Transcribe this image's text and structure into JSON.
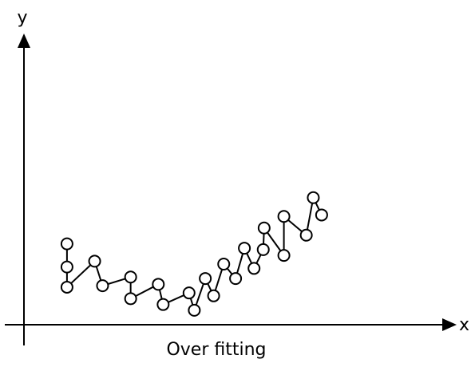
{
  "caption": "Over fitting",
  "axes": {
    "x_label": "x",
    "y_label": "y"
  },
  "colors": {
    "stroke": "#000000",
    "background": "#ffffff"
  },
  "chart_data": {
    "type": "line",
    "title": "Over fitting",
    "xlabel": "x",
    "ylabel": "y",
    "grid": false,
    "axis_ticks": false,
    "xlim": [
      0,
      100
    ],
    "ylim": [
      0,
      100
    ],
    "series": [
      {
        "markers": "open-circle",
        "points": [
          {
            "x": 9.8,
            "y": 28.0
          },
          {
            "x": 9.8,
            "y": 20.0
          },
          {
            "x": 9.8,
            "y": 13.0
          },
          {
            "x": 16.1,
            "y": 22.0
          },
          {
            "x": 17.9,
            "y": 13.5
          },
          {
            "x": 24.3,
            "y": 16.5
          },
          {
            "x": 24.3,
            "y": 9.0
          },
          {
            "x": 30.6,
            "y": 14.0
          },
          {
            "x": 31.7,
            "y": 7.0
          },
          {
            "x": 37.6,
            "y": 11.0
          },
          {
            "x": 38.8,
            "y": 5.0
          },
          {
            "x": 41.3,
            "y": 16.0
          },
          {
            "x": 43.2,
            "y": 10.0
          },
          {
            "x": 45.5,
            "y": 21.0
          },
          {
            "x": 48.2,
            "y": 16.0
          },
          {
            "x": 50.2,
            "y": 26.5
          },
          {
            "x": 52.4,
            "y": 19.5
          },
          {
            "x": 54.5,
            "y": 26.0
          },
          {
            "x": 54.7,
            "y": 33.5
          },
          {
            "x": 59.2,
            "y": 24.0
          },
          {
            "x": 59.2,
            "y": 37.5
          },
          {
            "x": 64.3,
            "y": 31.0
          },
          {
            "x": 65.9,
            "y": 44.0
          },
          {
            "x": 67.8,
            "y": 38.0
          }
        ]
      }
    ]
  }
}
